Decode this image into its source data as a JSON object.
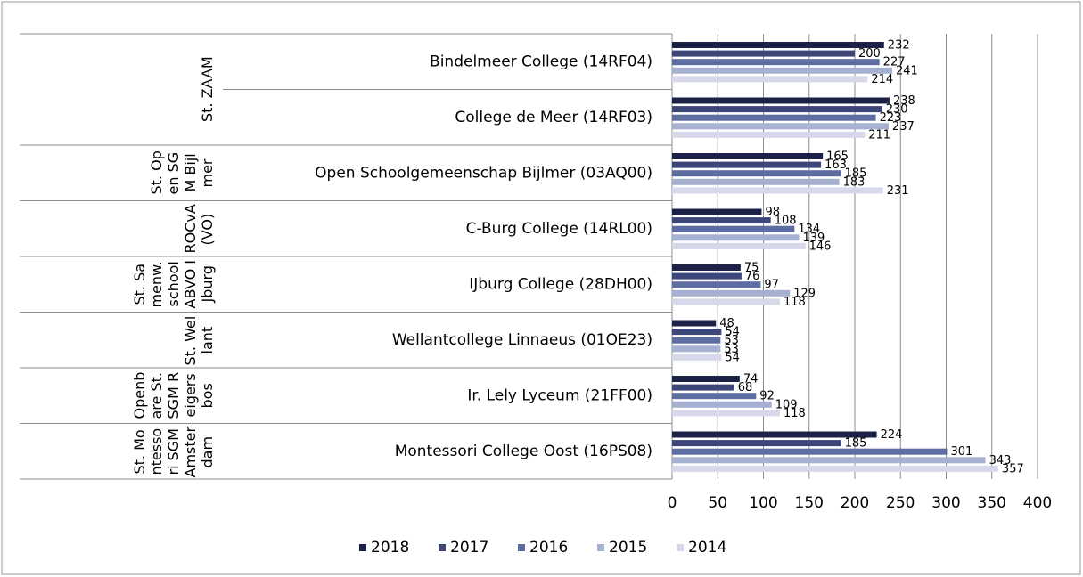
{
  "chart_data": {
    "type": "bar",
    "orientation": "horizontal",
    "categories": [
      "Bindelmeer College (14RF04)",
      "College de Meer (14RF03)",
      "Open Schoolgemeenschap Bijlmer (03AQ00)",
      "C-Burg College (14RL00)",
      "IJburg College (28DH00)",
      "Wellantcollege Linnaeus (01OE23)",
      "Ir. Lely Lyceum (21FF00)",
      "Montessori College Oost (16PS08)"
    ],
    "group_labels": [
      "St. ZAAM",
      null,
      "St. Open SGM Bijlmer",
      "ROCvA (VO)",
      "St. Samenw.school ABVO IJburg",
      "St. Wellant",
      "Openbare St. SGM Reigersbos",
      "St. Montessori SGM Amsterdam"
    ],
    "series": [
      {
        "name": "2018",
        "color": "#1c2147",
        "values": [
          232,
          238,
          165,
          98,
          75,
          48,
          74,
          224
        ]
      },
      {
        "name": "2017",
        "color": "#3c4679",
        "values": [
          200,
          230,
          163,
          108,
          76,
          54,
          68,
          185
        ]
      },
      {
        "name": "2016",
        "color": "#5d6ca1",
        "values": [
          227,
          223,
          185,
          134,
          97,
          53,
          92,
          301
        ]
      },
      {
        "name": "2015",
        "color": "#a6b0d1",
        "values": [
          241,
          237,
          183,
          139,
          129,
          53,
          109,
          343
        ]
      },
      {
        "name": "2014",
        "color": "#d7d9ea",
        "values": [
          214,
          211,
          231,
          146,
          118,
          54,
          118,
          357
        ]
      }
    ],
    "xlim": [
      0,
      400
    ],
    "xticks": [
      0,
      50,
      100,
      150,
      200,
      250,
      300,
      350,
      400
    ],
    "grid": true,
    "legend": "bottom"
  }
}
